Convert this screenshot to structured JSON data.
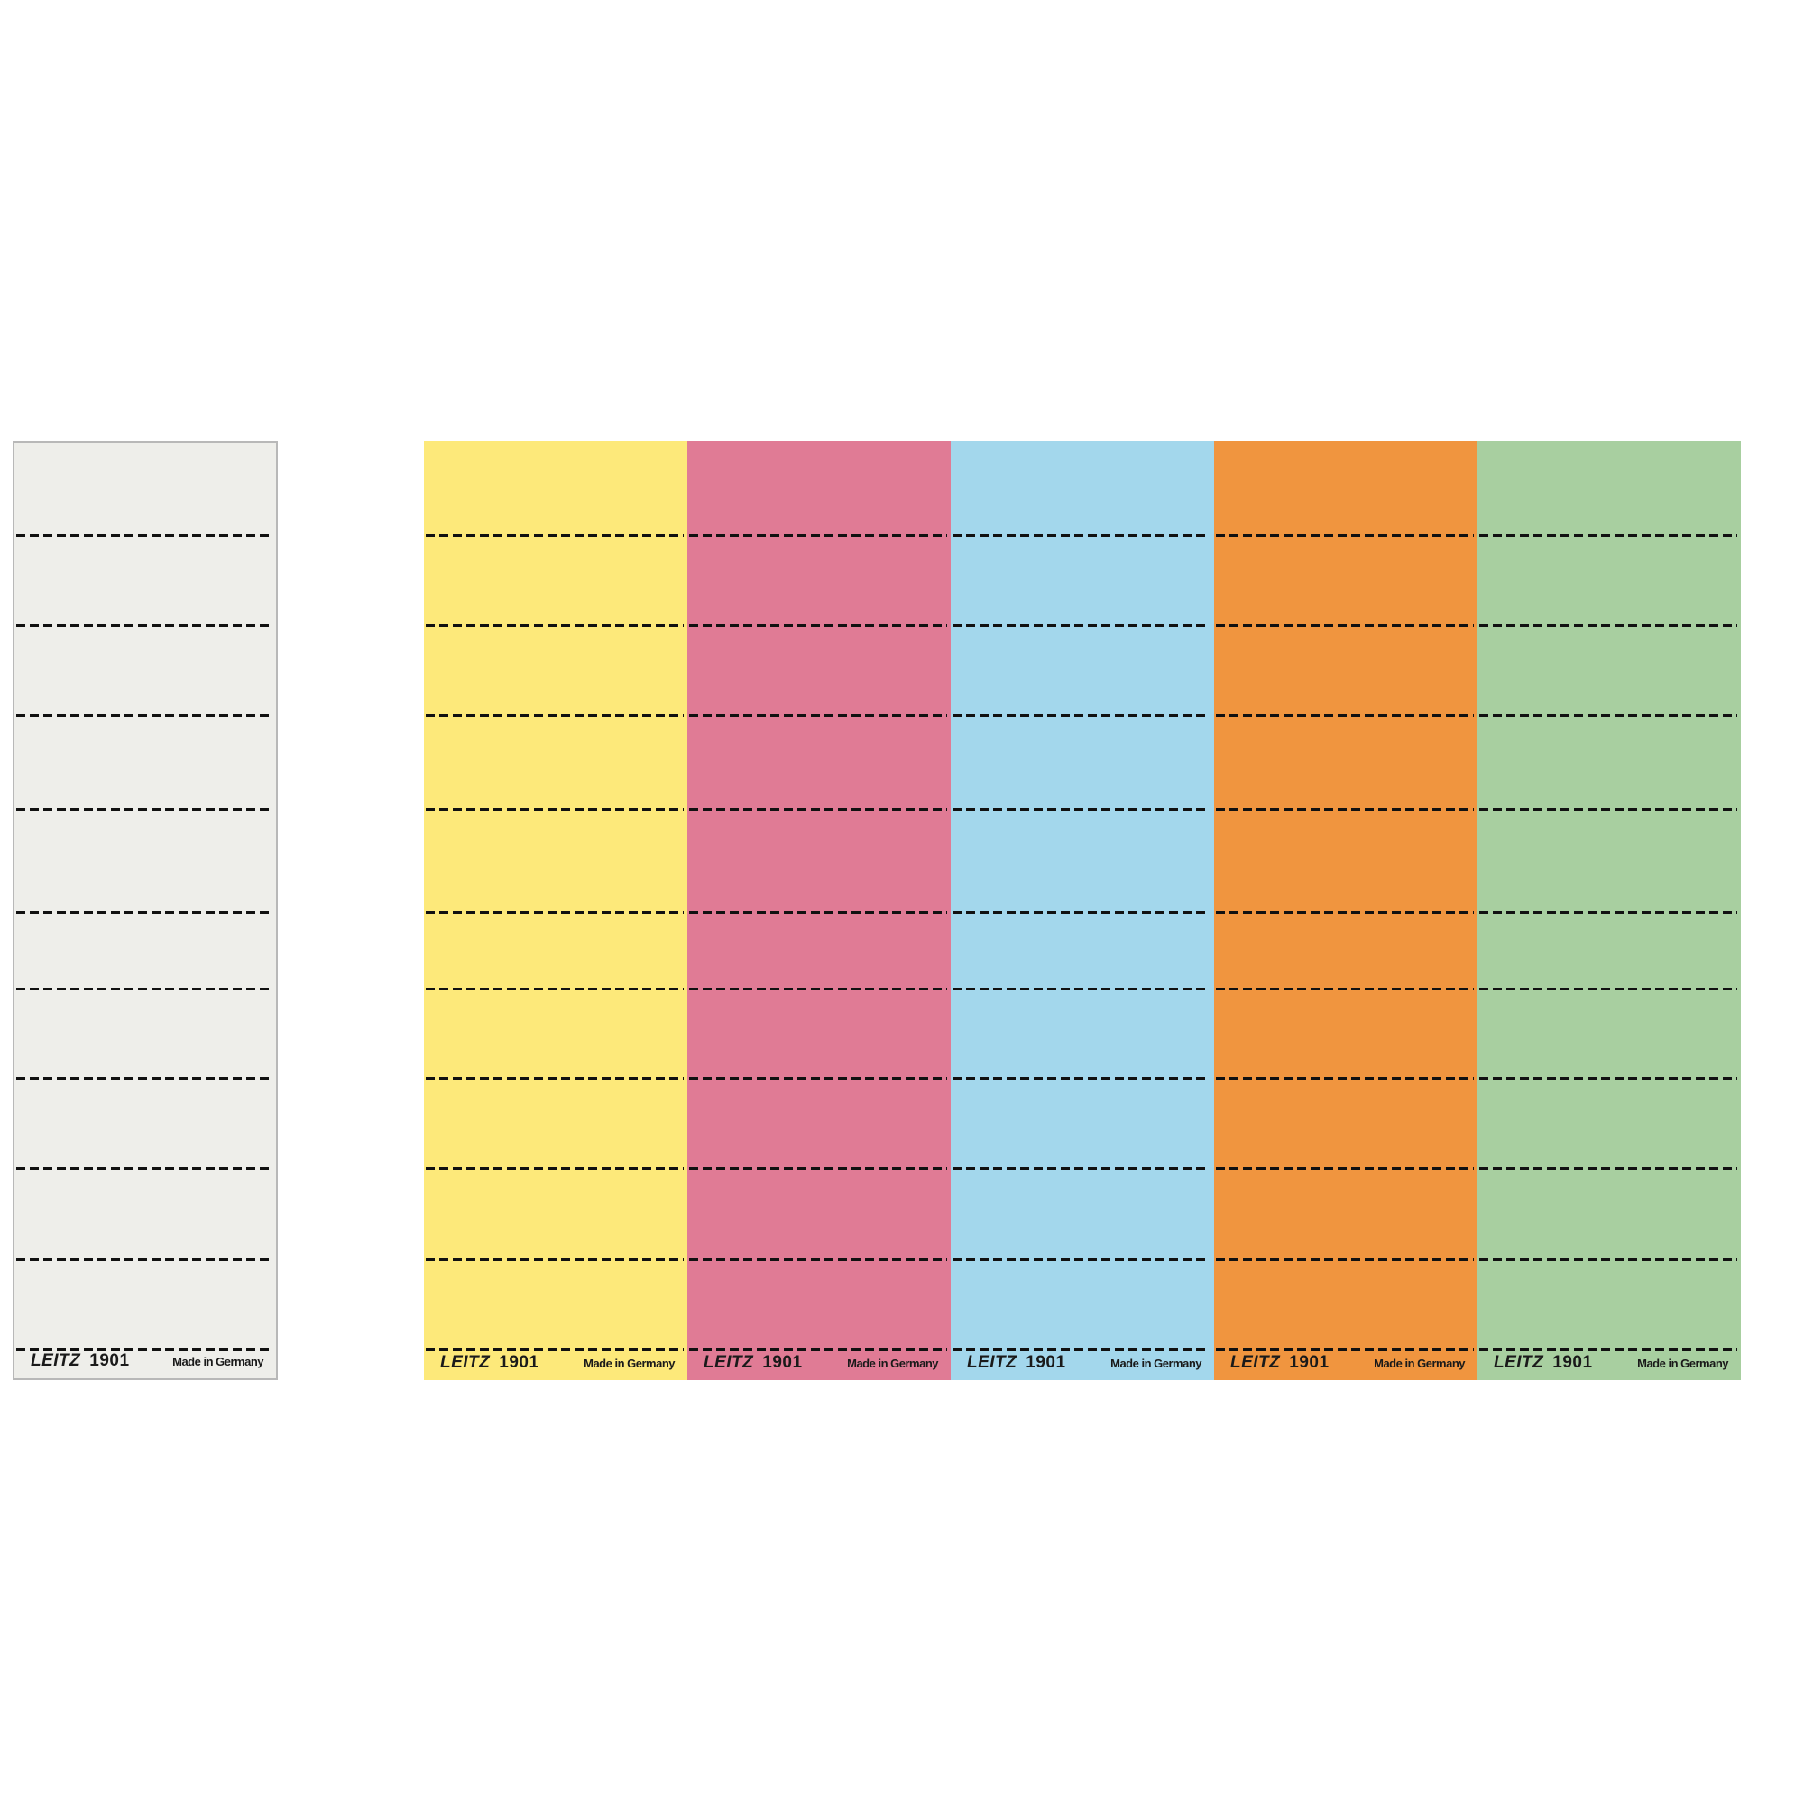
{
  "label_text": {
    "brand": "LEITZ",
    "model": "1901",
    "origin": "Made in Germany"
  },
  "strips": [
    {
      "name": "white",
      "color": "#eeeeea"
    },
    {
      "name": "yellow",
      "color": "#fde97a"
    },
    {
      "name": "pink",
      "color": "#e07b95"
    },
    {
      "name": "blue",
      "color": "#a3d7ec"
    },
    {
      "name": "orange",
      "color": "#f0953f"
    },
    {
      "name": "green",
      "color": "#a8cfa0"
    }
  ]
}
